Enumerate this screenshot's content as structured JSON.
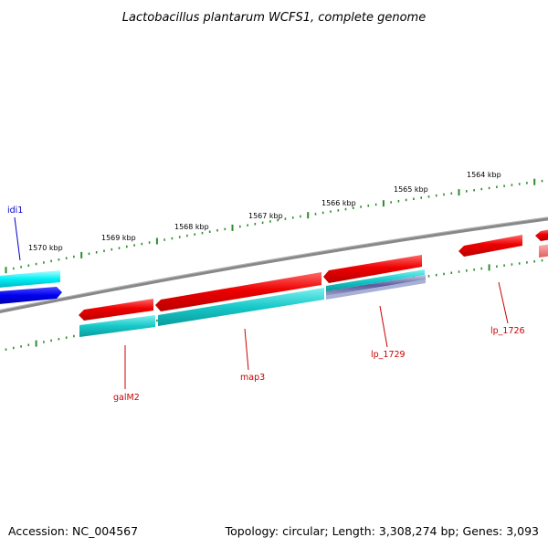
{
  "title": "Lactobacillus plantarum WCFS1, complete genome",
  "footer": {
    "accession": "Accession: NC_004567",
    "topology": "Topology: circular; Length: 3,308,274 bp; Genes: 3,093"
  },
  "kbp_labels": [
    "1570 kbp",
    "1569 kbp",
    "1568 kbp",
    "1567 kbp",
    "1566 kbp",
    "1565 kbp",
    "1564 kbp"
  ],
  "gene_labels": [
    "idi1",
    "galM2",
    "map3",
    "lp_1729",
    "lp_1726"
  ],
  "colors": {
    "backbone": "#888888",
    "tick": "#2e8b2e",
    "forward_cds": "#e00000",
    "reverse_cds": "#00c8c8",
    "forward_gene_cyan": "#00e8f0",
    "blue_feature": "#0000dd",
    "label_red": "#cc0000",
    "label_blue": "#0000cc"
  }
}
